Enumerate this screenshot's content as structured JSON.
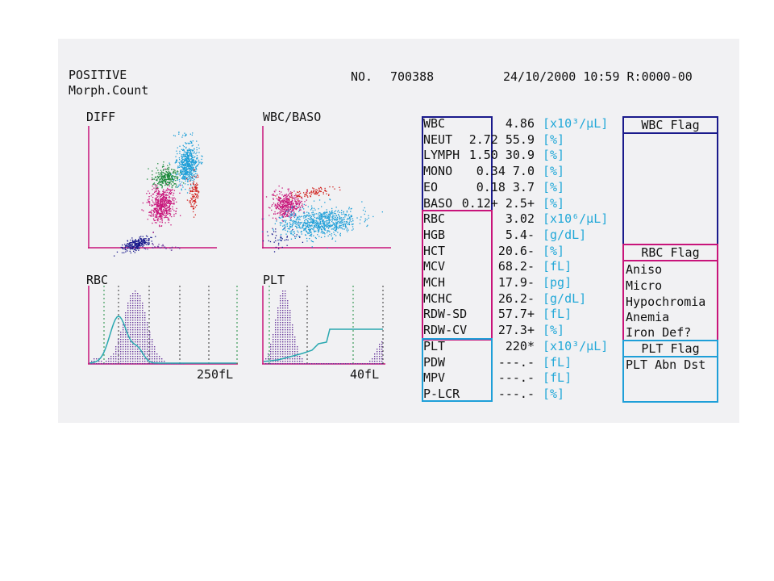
{
  "header": {
    "status": "POSITIVE",
    "mode": "Morph.Count",
    "no_label": "NO.",
    "sample_no": "700388",
    "datetime": "24/10/2000 10:59 R:0000-00"
  },
  "plots": {
    "diff_title": "DIFF",
    "wbc_baso_title": "WBC/BASO",
    "rbc_title": "RBC",
    "rbc_axis": "250fL",
    "plt_title": "PLT",
    "plt_axis": "40fL"
  },
  "colors": {
    "dark_blue": "#1a1a8c",
    "magenta": "#c8147a",
    "cyan": "#1e9fd8",
    "green": "#1c8a3c",
    "red": "#d0201c",
    "purple": "#6a3a9c",
    "teal": "#2aa8b0"
  },
  "parameters": [
    {
      "name": "WBC",
      "value": "4.86",
      "unit": "[x10³/µL]"
    },
    {
      "name": "NEUT",
      "value": "2.72   55.9",
      "unit": "[%]"
    },
    {
      "name": "LYMPH",
      "value": "1.50   30.9",
      "unit": "[%]"
    },
    {
      "name": "MONO",
      "value": "0.34    7.0",
      "unit": "[%]"
    },
    {
      "name": "EO",
      "value": "0.18    3.7",
      "unit": "[%]"
    },
    {
      "name": "BASO",
      "value": "0.12+   2.5+",
      "unit": "[%]"
    },
    {
      "name": "RBC",
      "value": "3.02",
      "unit": "[x10⁶/µL]"
    },
    {
      "name": "HGB",
      "value": "5.4-",
      "unit": "[g/dL]"
    },
    {
      "name": "HCT",
      "value": "20.6-",
      "unit": "[%]"
    },
    {
      "name": "MCV",
      "value": "68.2-",
      "unit": "[fL]"
    },
    {
      "name": "MCH",
      "value": "17.9-",
      "unit": "[pg]"
    },
    {
      "name": "MCHC",
      "value": "26.2-",
      "unit": "[g/dL]"
    },
    {
      "name": "RDW-SD",
      "value": "57.7+",
      "unit": "[fL]"
    },
    {
      "name": "RDW-CV",
      "value": "27.3+",
      "unit": "[%]"
    },
    {
      "name": "PLT",
      "value": "220*",
      "unit": "[x10³/µL]"
    },
    {
      "name": "PDW",
      "value": "---.-",
      "unit": "[fL]"
    },
    {
      "name": "MPV",
      "value": "---.-",
      "unit": "[fL]"
    },
    {
      "name": "P-LCR",
      "value": "---.-",
      "unit": "[%]"
    }
  ],
  "flags": {
    "wbc_title": "WBC Flag",
    "rbc_title": "RBC Flag",
    "rbc_items": [
      "Aniso",
      "Micro",
      "Hypochromia",
      "Anemia",
      "Iron Def?"
    ],
    "plt_title": "PLT Flag",
    "plt_items": [
      "PLT Abn Dst"
    ]
  }
}
